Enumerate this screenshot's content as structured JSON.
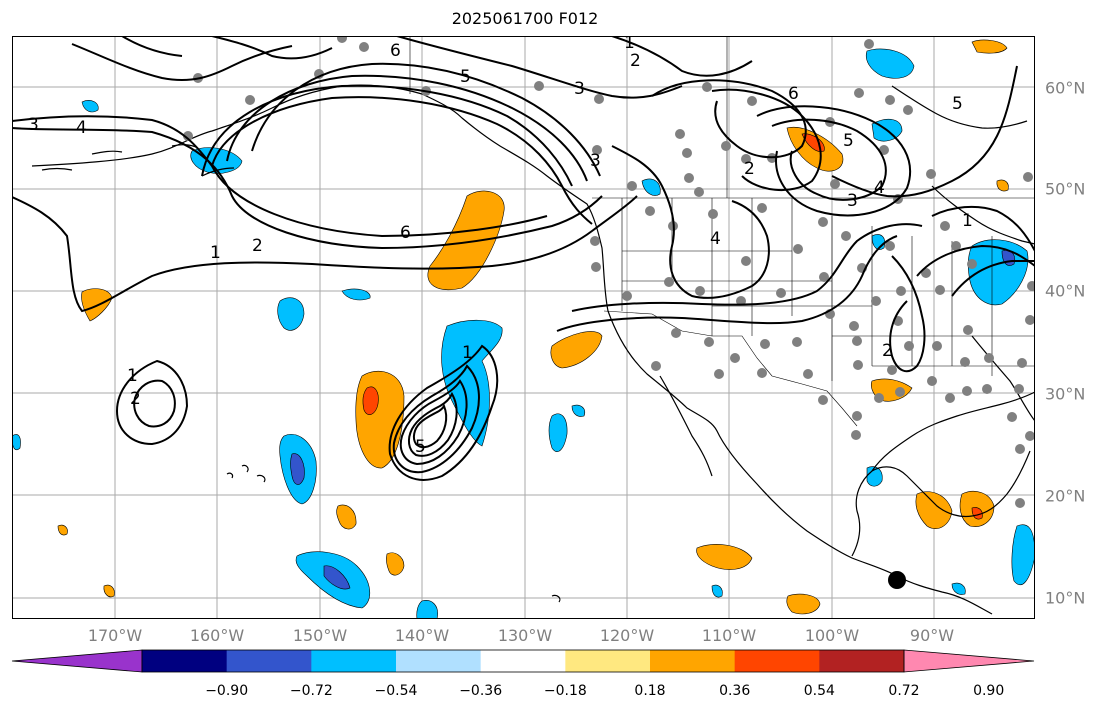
{
  "title": "2025061700 F012",
  "longitude_labels": [
    "170°W",
    "160°W",
    "150°W",
    "140°W",
    "130°W",
    "120°W",
    "110°W",
    "100°W",
    "90°W"
  ],
  "latitude_labels": [
    "60°N",
    "50°N",
    "40°N",
    "30°N",
    "20°N",
    "10°N"
  ],
  "colorbar": {
    "colors": [
      "#9933cc",
      "#000080",
      "#3355cc",
      "#00bfff",
      "#b0e0ff",
      "#ffffff",
      "#ffe880",
      "#ffa500",
      "#ff4500",
      "#b22222",
      "#ff88b0"
    ],
    "tick_labels": [
      "−0.90",
      "−0.72",
      "−0.54",
      "−0.36",
      "−0.18",
      "0.18",
      "0.36",
      "0.54",
      "0.72",
      "0.90"
    ]
  },
  "contour_labels": [
    "1",
    "2",
    "3",
    "4",
    "5",
    "6",
    "6",
    "5",
    "3",
    "2",
    "1",
    "2",
    "6",
    "5",
    "4",
    "3",
    "3",
    "4",
    "1",
    "1",
    "2",
    "5",
    "2",
    "1"
  ],
  "map": {
    "land_color": "#ffffff",
    "ocean_color": "#ffffff",
    "contour_color": "#000000",
    "station_color": "#808080"
  }
}
